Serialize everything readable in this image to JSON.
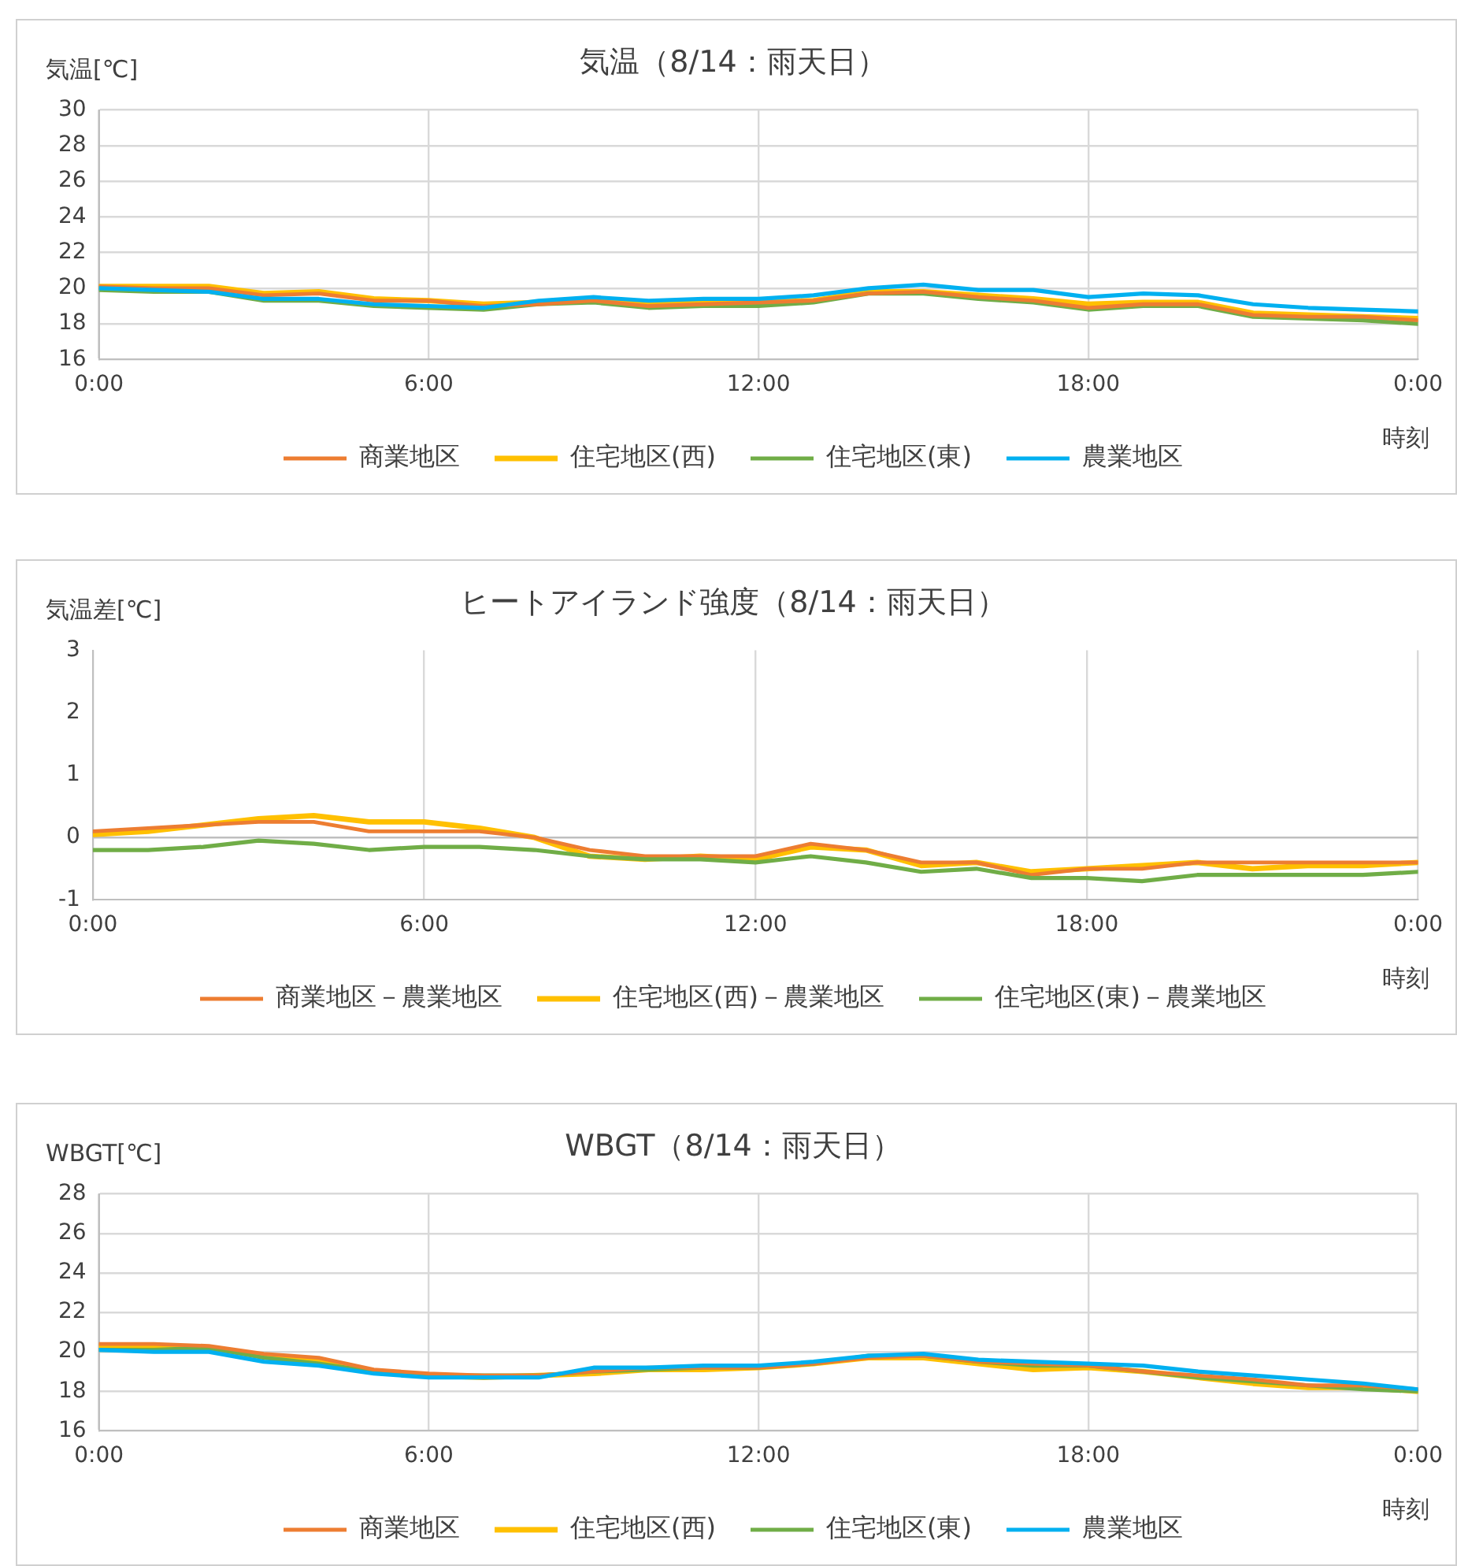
{
  "chart_data": [
    {
      "type": "line",
      "title": "気温（8/14：雨天日）",
      "ylabel": "気温[℃]",
      "xlabel": "時刻",
      "legend": "bottom",
      "grid": true,
      "marker": "none",
      "x": [
        0,
        1,
        2,
        3,
        4,
        5,
        6,
        7,
        8,
        9,
        10,
        11,
        12,
        13,
        14,
        15,
        16,
        17,
        18,
        19,
        20,
        21,
        22,
        23,
        24
      ],
      "xlim": [
        0,
        24
      ],
      "xticks": [
        {
          "value": 0,
          "label": "0:00"
        },
        {
          "value": 6,
          "label": "6:00"
        },
        {
          "value": 12,
          "label": "12:00"
        },
        {
          "value": 18,
          "label": "18:00"
        },
        {
          "value": 24,
          "label": "0:00"
        }
      ],
      "ylim": [
        16,
        30
      ],
      "yticks": [
        16,
        18,
        20,
        22,
        24,
        26,
        28,
        30
      ],
      "series": [
        {
          "name": "商業地区",
          "color": "#ed7d31",
          "values": [
            20.1,
            20.0,
            20.0,
            19.6,
            19.7,
            19.3,
            19.3,
            19.0,
            19.1,
            19.3,
            19.0,
            19.1,
            19.2,
            19.3,
            19.7,
            19.8,
            19.5,
            19.3,
            18.9,
            19.1,
            19.1,
            18.5,
            18.4,
            18.4,
            18.2
          ]
        },
        {
          "name": "住宅地区(西)",
          "color": "#ffc000",
          "values": [
            20.1,
            20.1,
            20.1,
            19.7,
            19.8,
            19.4,
            19.3,
            19.1,
            19.2,
            19.3,
            19.1,
            19.2,
            19.2,
            19.3,
            19.8,
            19.8,
            19.6,
            19.4,
            19.1,
            19.2,
            19.2,
            18.6,
            18.5,
            18.4,
            18.3
          ]
        },
        {
          "name": "住宅地区(東)",
          "color": "#70ad47",
          "values": [
            19.9,
            19.8,
            19.8,
            19.3,
            19.3,
            19.0,
            18.9,
            18.8,
            19.1,
            19.2,
            18.9,
            19.0,
            19.0,
            19.2,
            19.7,
            19.7,
            19.4,
            19.2,
            18.8,
            19.0,
            19.0,
            18.4,
            18.3,
            18.2,
            18.0
          ]
        },
        {
          "name": "農業地区",
          "color": "#00b0f0",
          "values": [
            20.0,
            19.9,
            19.8,
            19.4,
            19.4,
            19.1,
            19.0,
            18.9,
            19.3,
            19.5,
            19.3,
            19.4,
            19.4,
            19.6,
            20.0,
            20.2,
            19.9,
            19.9,
            19.5,
            19.7,
            19.6,
            19.1,
            18.9,
            18.8,
            18.7
          ]
        }
      ]
    },
    {
      "type": "line",
      "title": "ヒートアイランド強度（8/14：雨天日）",
      "ylabel": "気温差[℃]",
      "xlabel": "時刻",
      "legend": "bottom",
      "grid": "x",
      "marker": "none",
      "x": [
        0,
        1,
        2,
        3,
        4,
        5,
        6,
        7,
        8,
        9,
        10,
        11,
        12,
        13,
        14,
        15,
        16,
        17,
        18,
        19,
        20,
        21,
        22,
        23,
        24
      ],
      "xlim": [
        0,
        24
      ],
      "xticks": [
        {
          "value": 0,
          "label": "0:00"
        },
        {
          "value": 6,
          "label": "6:00"
        },
        {
          "value": 12,
          "label": "12:00"
        },
        {
          "value": 18,
          "label": "18:00"
        },
        {
          "value": 24,
          "label": "0:00"
        }
      ],
      "ylim": [
        -1,
        3
      ],
      "yticks": [
        -1,
        0,
        1,
        2,
        3
      ],
      "series": [
        {
          "name": "商業地区－農業地区",
          "color": "#ed7d31",
          "values": [
            0.1,
            0.15,
            0.2,
            0.25,
            0.25,
            0.1,
            0.1,
            0.1,
            0.0,
            -0.2,
            -0.3,
            -0.3,
            -0.3,
            -0.1,
            -0.2,
            -0.4,
            -0.4,
            -0.6,
            -0.5,
            -0.5,
            -0.4,
            -0.4,
            -0.4,
            -0.4,
            -0.4
          ]
        },
        {
          "name": "住宅地区(西)－農業地区",
          "color": "#ffc000",
          "values": [
            0.05,
            0.1,
            0.2,
            0.3,
            0.35,
            0.25,
            0.25,
            0.15,
            0.0,
            -0.3,
            -0.35,
            -0.3,
            -0.35,
            -0.15,
            -0.2,
            -0.45,
            -0.4,
            -0.55,
            -0.5,
            -0.45,
            -0.4,
            -0.5,
            -0.45,
            -0.45,
            -0.4
          ]
        },
        {
          "name": "住宅地区(東)－農業地区",
          "color": "#70ad47",
          "values": [
            -0.2,
            -0.2,
            -0.15,
            -0.05,
            -0.1,
            -0.2,
            -0.15,
            -0.15,
            -0.2,
            -0.3,
            -0.35,
            -0.35,
            -0.4,
            -0.3,
            -0.4,
            -0.55,
            -0.5,
            -0.65,
            -0.65,
            -0.7,
            -0.6,
            -0.6,
            -0.6,
            -0.6,
            -0.55
          ]
        }
      ]
    },
    {
      "type": "line",
      "title": "WBGT（8/14：雨天日）",
      "ylabel": "WBGT[℃]",
      "xlabel": "時刻",
      "legend": "bottom",
      "grid": true,
      "marker": "none",
      "x": [
        0,
        1,
        2,
        3,
        4,
        5,
        6,
        7,
        8,
        9,
        10,
        11,
        12,
        13,
        14,
        15,
        16,
        17,
        18,
        19,
        20,
        21,
        22,
        23,
        24
      ],
      "xlim": [
        0,
        24
      ],
      "xticks": [
        {
          "value": 0,
          "label": "0:00"
        },
        {
          "value": 6,
          "label": "6:00"
        },
        {
          "value": 12,
          "label": "12:00"
        },
        {
          "value": 18,
          "label": "18:00"
        },
        {
          "value": 24,
          "label": "0:00"
        }
      ],
      "ylim": [
        16,
        28
      ],
      "yticks": [
        16,
        18,
        20,
        22,
        24,
        26,
        28
      ],
      "series": [
        {
          "name": "商業地区",
          "color": "#ed7d31",
          "values": [
            20.4,
            20.4,
            20.3,
            19.9,
            19.7,
            19.1,
            18.9,
            18.8,
            18.8,
            19.0,
            19.2,
            19.2,
            19.2,
            19.4,
            19.7,
            19.8,
            19.5,
            19.4,
            19.3,
            19.0,
            18.8,
            18.6,
            18.3,
            18.3,
            18.1
          ]
        },
        {
          "name": "住宅地区(西)",
          "color": "#ffc000",
          "values": [
            20.3,
            20.3,
            20.2,
            19.8,
            19.5,
            19.0,
            18.8,
            18.7,
            18.8,
            18.9,
            19.1,
            19.1,
            19.2,
            19.4,
            19.7,
            19.7,
            19.4,
            19.1,
            19.2,
            19.0,
            18.7,
            18.4,
            18.2,
            18.2,
            18.0
          ]
        },
        {
          "name": "住宅地区(東)",
          "color": "#70ad47",
          "values": [
            20.1,
            20.1,
            20.2,
            19.7,
            19.4,
            19.0,
            18.8,
            18.8,
            18.8,
            19.0,
            19.1,
            19.2,
            19.2,
            19.4,
            19.8,
            19.8,
            19.5,
            19.3,
            19.3,
            19.0,
            18.7,
            18.5,
            18.3,
            18.1,
            18.0
          ]
        },
        {
          "name": "農業地区",
          "color": "#00b0f0",
          "values": [
            20.1,
            20.0,
            20.0,
            19.5,
            19.3,
            18.9,
            18.7,
            18.7,
            18.7,
            19.2,
            19.2,
            19.3,
            19.3,
            19.5,
            19.8,
            19.9,
            19.6,
            19.5,
            19.4,
            19.3,
            19.0,
            18.8,
            18.6,
            18.4,
            18.1
          ]
        }
      ]
    }
  ]
}
